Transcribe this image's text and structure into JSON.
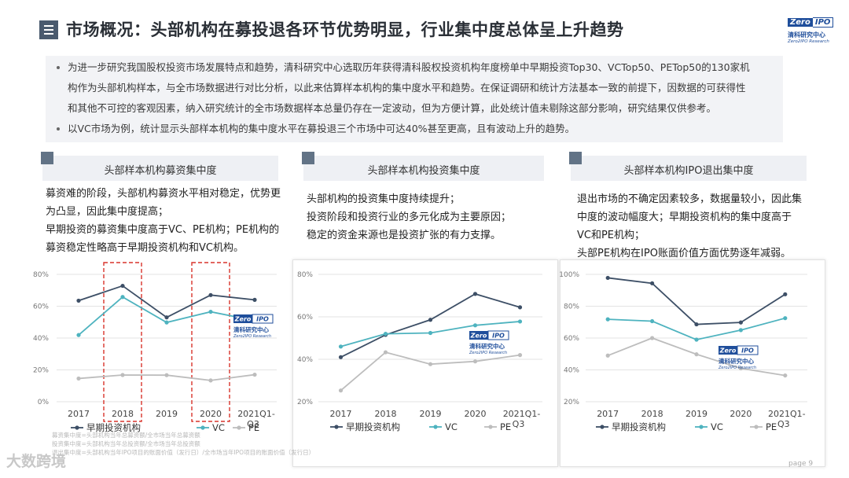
{
  "title": "市场概况：头部机构在募投退各环节优势明显，行业集中度总体呈上升趋势",
  "logo": {
    "zero": "Zero",
    "ipo": "IPO",
    "cn": "清科研究中心",
    "en": "Zero2IPO Research"
  },
  "intro": {
    "bullet1": [
      "为进一步研究我国股权投资市场发展特点和趋势，清科研究中心选取历年获得清科股权投资机构年度榜单中早期投资Top30、VCTop50、PETop50的130家机",
      "构作为头部机构样本，与全市场数据进行对比分析，以此来估算样本机构的集中度水平和趋势。在保证调研和统计方法基本一致的前提下，因数据的可获得性",
      "和其他不可控的客观因素，纳入研究统计的全市场数据样本总量仍存在一定波动，但为方便计算，此处统计值未剔除这部分影响，研究结果仅供参考。"
    ],
    "bullet2": "以VC市场为例，统计显示头部样本机构的集中度水平在募投退三个市场中可达40%甚至更高，且有波动上升的趋势。"
  },
  "panels": [
    {
      "heading": "头部样本机构募资集中度",
      "desc": [
        "募资难的阶段，头部机构募资水平相对稳定，优势更",
        "为凸显，因此集中度提高；",
        "早期投资的募资集中度高于VC、PE机构；PE机构的",
        "募资稳定性略高于早期投资机构和VC机构。"
      ]
    },
    {
      "heading": "头部样本机构投资集中度",
      "desc": [
        "头部机构的投资集中度持续提升；",
        "投资阶段和投资行业的多元化成为主要原因；",
        "稳定的资金来源也是投资扩张的有力支撑。"
      ]
    },
    {
      "heading": "头部样本机构IPO退出集中度",
      "desc": [
        "退出市场的不确定因素较多，数据量较小，因此集",
        "中度的波动幅度大；早期投资机构的集中度高于",
        "VC和PE机构；",
        "头部PE机构在IPO账面价值方面优势逐年减弱。"
      ]
    }
  ],
  "chart_data": [
    {
      "type": "line",
      "title": "头部样本机构募资集中度",
      "categories": [
        "2017",
        "2018",
        "2019",
        "2020",
        "2021Q1-Q3"
      ],
      "y_ticks": [
        "0%",
        "20%",
        "40%",
        "60%",
        "80%"
      ],
      "ylim": [
        0,
        80
      ],
      "series": [
        {
          "name": "早期投资机构",
          "color": "#3d4f66",
          "values": [
            63.5,
            72.8,
            53.0,
            67.0,
            64.0
          ]
        },
        {
          "name": "VC",
          "color": "#4eb3bf",
          "values": [
            41.9,
            65.8,
            49.8,
            56.5,
            51.0
          ]
        },
        {
          "name": "PE",
          "color": "#bdbdbd",
          "values": [
            14.6,
            16.8,
            16.7,
            13.4,
            17.0
          ]
        }
      ],
      "highlight_categories": [
        "2018",
        "2020"
      ]
    },
    {
      "type": "line",
      "title": "头部样本机构投资集中度",
      "categories": [
        "2017",
        "2018",
        "2019",
        "2020",
        "2021Q1-Q3"
      ],
      "y_ticks": [
        "20%",
        "40%",
        "60%",
        "80%"
      ],
      "ylim": [
        20,
        80
      ],
      "series": [
        {
          "name": "早期投资机构",
          "color": "#3d4f66",
          "values": [
            41.0,
            51.5,
            58.6,
            70.8,
            64.5
          ]
        },
        {
          "name": "VC",
          "color": "#4eb3bf",
          "values": [
            46.0,
            52.0,
            52.4,
            56.0,
            57.8
          ]
        },
        {
          "name": "PE",
          "color": "#bdbdbd",
          "values": [
            25.3,
            43.3,
            37.7,
            39.0,
            42.0
          ]
        }
      ]
    },
    {
      "type": "line",
      "title": "头部样本机构IPO退出集中度",
      "categories": [
        "2017",
        "2018",
        "2019",
        "2020",
        "2021Q1-Q3"
      ],
      "y_ticks": [
        "20%",
        "40%",
        "60%",
        "80%",
        "100%"
      ],
      "ylim": [
        20,
        100
      ],
      "series": [
        {
          "name": "早期投资机构",
          "color": "#3d4f66",
          "values": [
            97.8,
            94.4,
            68.6,
            69.8,
            87.5
          ]
        },
        {
          "name": "VC",
          "color": "#4eb3bf",
          "values": [
            71.8,
            70.6,
            59.0,
            65.0,
            72.5
          ]
        },
        {
          "name": "PE",
          "color": "#bdbdbd",
          "values": [
            49.0,
            60.0,
            49.8,
            41.0,
            36.5
          ]
        }
      ]
    }
  ],
  "footnotes": [
    "募资集中度=头部机构当年总募资额/全市场当年总募资额",
    "投资集中度=头部机构当年总投资额/全市场当年总投资额",
    "退出集中度=头部机构当年IPO项目的账面价值（发行日）/全市场当年IPO项目的账面价值（发行日）"
  ],
  "watermark": "大数跨境",
  "page": "page 9"
}
